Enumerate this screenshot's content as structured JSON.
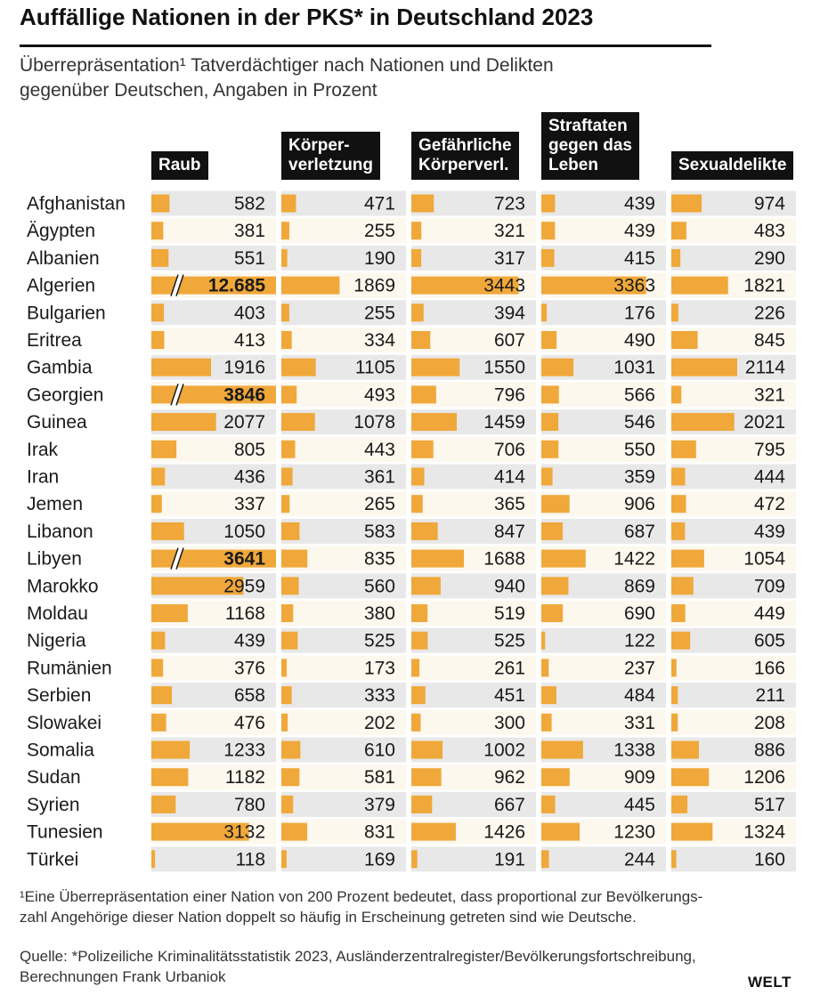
{
  "header": {
    "title": "Auffällige Nationen in der PKS* in Deutschland 2023",
    "subtitle_line1": "Überrepräsentation¹ Tatverdächtiger nach Nationen und Delikten",
    "subtitle_line2": "gegenüber Deutschen, Angaben in Prozent"
  },
  "columns": [
    {
      "lines": [
        "Raub"
      ]
    },
    {
      "lines": [
        "Körper-",
        "verletzung"
      ]
    },
    {
      "lines": [
        "Gefährliche",
        "Körperverl."
      ]
    },
    {
      "lines": [
        "Straftaten",
        "gegen das",
        "Leben"
      ]
    },
    {
      "lines": [
        "Sexualdelikte"
      ]
    }
  ],
  "colors": {
    "bar": "#f0a83a",
    "row_shade": "#e8e8e8",
    "row_light": "#fdf8ee",
    "header_bg": "#111111"
  },
  "chart_data": {
    "type": "table",
    "title": "Auffällige Nationen in der PKS* in Deutschland 2023",
    "unit": "Prozent",
    "columns": [
      "Raub",
      "Körperverletzung",
      "Gefährliche Körperverl.",
      "Straftaten gegen das Leben",
      "Sexualdelikte"
    ],
    "rows": [
      {
        "country": "Afghanistan",
        "values": [
          582,
          471,
          723,
          439,
          974
        ],
        "labels": [
          "582",
          "471",
          "723",
          "439",
          "974"
        ]
      },
      {
        "country": "Ägypten",
        "values": [
          381,
          255,
          321,
          439,
          483
        ],
        "labels": [
          "381",
          "255",
          "321",
          "439",
          "483"
        ]
      },
      {
        "country": "Albanien",
        "values": [
          551,
          190,
          317,
          415,
          290
        ],
        "labels": [
          "551",
          "190",
          "317",
          "415",
          "290"
        ]
      },
      {
        "country": "Algerien",
        "values": [
          12685,
          1869,
          3443,
          3363,
          1821
        ],
        "labels": [
          "12.685",
          "1869",
          "3443",
          "3363",
          "1821"
        ]
      },
      {
        "country": "Bulgarien",
        "values": [
          403,
          255,
          394,
          176,
          226
        ],
        "labels": [
          "403",
          "255",
          "394",
          "176",
          "226"
        ]
      },
      {
        "country": "Eritrea",
        "values": [
          413,
          334,
          607,
          490,
          845
        ],
        "labels": [
          "413",
          "334",
          "607",
          "490",
          "845"
        ]
      },
      {
        "country": "Gambia",
        "values": [
          1916,
          1105,
          1550,
          1031,
          2114
        ],
        "labels": [
          "1916",
          "1105",
          "1550",
          "1031",
          "2114"
        ]
      },
      {
        "country": "Georgien",
        "values": [
          3846,
          493,
          796,
          566,
          321
        ],
        "labels": [
          "3846",
          "493",
          "796",
          "566",
          "321"
        ]
      },
      {
        "country": "Guinea",
        "values": [
          2077,
          1078,
          1459,
          546,
          2021
        ],
        "labels": [
          "2077",
          "1078",
          "1459",
          "546",
          "2021"
        ]
      },
      {
        "country": "Irak",
        "values": [
          805,
          443,
          706,
          550,
          795
        ],
        "labels": [
          "805",
          "443",
          "706",
          "550",
          "795"
        ]
      },
      {
        "country": "Iran",
        "values": [
          436,
          361,
          414,
          359,
          444
        ],
        "labels": [
          "436",
          "361",
          "414",
          "359",
          "444"
        ]
      },
      {
        "country": "Jemen",
        "values": [
          337,
          265,
          365,
          906,
          472
        ],
        "labels": [
          "337",
          "265",
          "365",
          "906",
          "472"
        ]
      },
      {
        "country": "Libanon",
        "values": [
          1050,
          583,
          847,
          687,
          439
        ],
        "labels": [
          "1050",
          "583",
          "847",
          "687",
          "439"
        ]
      },
      {
        "country": "Libyen",
        "values": [
          3641,
          835,
          1688,
          1422,
          1054
        ],
        "labels": [
          "3641",
          "835",
          "1688",
          "1422",
          "1054"
        ]
      },
      {
        "country": "Marokko",
        "values": [
          2959,
          560,
          940,
          869,
          709
        ],
        "labels": [
          "2959",
          "560",
          "940",
          "869",
          "709"
        ]
      },
      {
        "country": "Moldau",
        "values": [
          1168,
          380,
          519,
          690,
          449
        ],
        "labels": [
          "1168",
          "380",
          "519",
          "690",
          "449"
        ]
      },
      {
        "country": "Nigeria",
        "values": [
          439,
          525,
          525,
          122,
          605
        ],
        "labels": [
          "439",
          "525",
          "525",
          "122",
          "605"
        ]
      },
      {
        "country": "Rumänien",
        "values": [
          376,
          173,
          261,
          237,
          166
        ],
        "labels": [
          "376",
          "173",
          "261",
          "237",
          "166"
        ]
      },
      {
        "country": "Serbien",
        "values": [
          658,
          333,
          451,
          484,
          211
        ],
        "labels": [
          "658",
          "333",
          "451",
          "484",
          "211"
        ]
      },
      {
        "country": "Slowakei",
        "values": [
          476,
          202,
          300,
          331,
          208
        ],
        "labels": [
          "476",
          "202",
          "300",
          "331",
          "208"
        ]
      },
      {
        "country": "Somalia",
        "values": [
          1233,
          610,
          1002,
          1338,
          886
        ],
        "labels": [
          "1233",
          "610",
          "1002",
          "1338",
          "886"
        ]
      },
      {
        "country": "Sudan",
        "values": [
          1182,
          581,
          962,
          909,
          1206
        ],
        "labels": [
          "1182",
          "581",
          "962",
          "909",
          "1206"
        ]
      },
      {
        "country": "Syrien",
        "values": [
          780,
          379,
          667,
          445,
          517
        ],
        "labels": [
          "780",
          "379",
          "667",
          "445",
          "517"
        ]
      },
      {
        "country": "Tunesien",
        "values": [
          3132,
          831,
          1426,
          1230,
          1324
        ],
        "labels": [
          "3132",
          "831",
          "1426",
          "1230",
          "1324"
        ]
      },
      {
        "country": "Türkei",
        "values": [
          118,
          169,
          191,
          244,
          160
        ],
        "labels": [
          "118",
          "169",
          "191",
          "244",
          "160"
        ]
      }
    ]
  },
  "footnotes": {
    "line1": "¹Eine Überrepräsentation einer Nation von 200 Prozent bedeutet, dass proportional zur Bevölkerungs-",
    "line2": "zahl Angehörige dieser Nation doppelt so häufig in Erscheinung getreten sind wie Deutsche.",
    "source1": "Quelle: *Polizeiliche Kriminalitätsstatistik 2023, Ausländerzentralregister/Bevölkerungsfortschreibung,",
    "source2": "Berechnungen Frank Urbaniok"
  },
  "brand": "WELT"
}
